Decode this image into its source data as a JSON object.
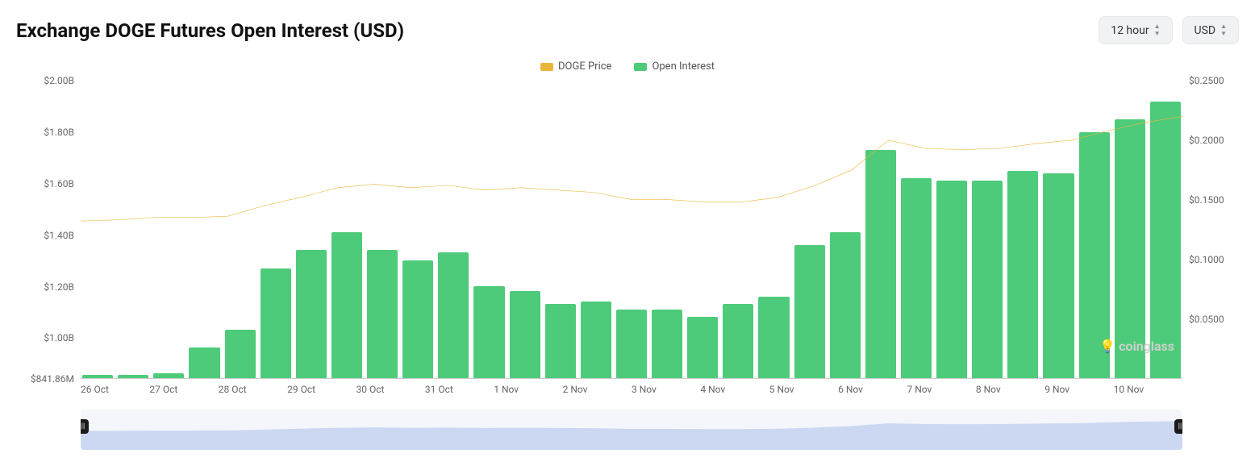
{
  "title": "Exchange DOGE Futures Open Interest (USD)",
  "controls": {
    "interval": "12 hour",
    "currency": "USD"
  },
  "legend": {
    "price": {
      "label": "DOGE Price",
      "color": "#eab63a"
    },
    "oi": {
      "label": "Open Interest",
      "color": "#4ecb7a"
    }
  },
  "chart": {
    "type": "bar+line",
    "background_color": "#ffffff",
    "bar_color": "#4ecb7a",
    "line_color": "#eab63a",
    "minimap_fill": "#ccd8f2",
    "minimap_bg": "#f4f6fb",
    "y_left": {
      "label_fontsize": 12,
      "min": 841860000,
      "max": 2000000000,
      "ticks": [
        {
          "value": 2000000000,
          "label": "$2.00B"
        },
        {
          "value": 1800000000,
          "label": "$1.80B"
        },
        {
          "value": 1600000000,
          "label": "$1.60B"
        },
        {
          "value": 1400000000,
          "label": "$1.40B"
        },
        {
          "value": 1200000000,
          "label": "$1.20B"
        },
        {
          "value": 1000000000,
          "label": "$1.00B"
        },
        {
          "value": 841860000,
          "label": "$841.86M"
        }
      ]
    },
    "y_right": {
      "label_fontsize": 12,
      "min": 0,
      "max": 0.25,
      "ticks": [
        {
          "value": 0.25,
          "label": "$0.2500"
        },
        {
          "value": 0.2,
          "label": "$0.2000"
        },
        {
          "value": 0.15,
          "label": "$0.1500"
        },
        {
          "value": 0.1,
          "label": "$0.1000"
        },
        {
          "value": 0.05,
          "label": "$0.0500"
        }
      ]
    },
    "x_labels": [
      "26 Oct",
      "27 Oct",
      "28 Oct",
      "29 Oct",
      "30 Oct",
      "31 Oct",
      "1 Nov",
      "2 Nov",
      "3 Nov",
      "4 Nov",
      "5 Nov",
      "6 Nov",
      "7 Nov",
      "8 Nov",
      "9 Nov",
      "10 Nov"
    ],
    "bars_billion": [
      0.855,
      0.855,
      0.86,
      0.96,
      1.03,
      1.27,
      1.34,
      1.41,
      1.34,
      1.3,
      1.33,
      1.2,
      1.18,
      1.13,
      1.14,
      1.11,
      1.11,
      1.08,
      1.13,
      1.16,
      1.36,
      1.41,
      1.73,
      1.62,
      1.61,
      1.61,
      1.65,
      1.64,
      1.8,
      1.85,
      1.92
    ],
    "price_line": [
      0.132,
      0.133,
      0.135,
      0.135,
      0.136,
      0.145,
      0.152,
      0.16,
      0.163,
      0.16,
      0.162,
      0.158,
      0.16,
      0.158,
      0.156,
      0.15,
      0.15,
      0.148,
      0.148,
      0.152,
      0.162,
      0.175,
      0.2,
      0.193,
      0.192,
      0.193,
      0.197,
      0.2,
      0.208,
      0.215,
      0.22
    ],
    "watermark": "coinglass"
  },
  "icons": {
    "bulb": "lightbulb-icon"
  }
}
